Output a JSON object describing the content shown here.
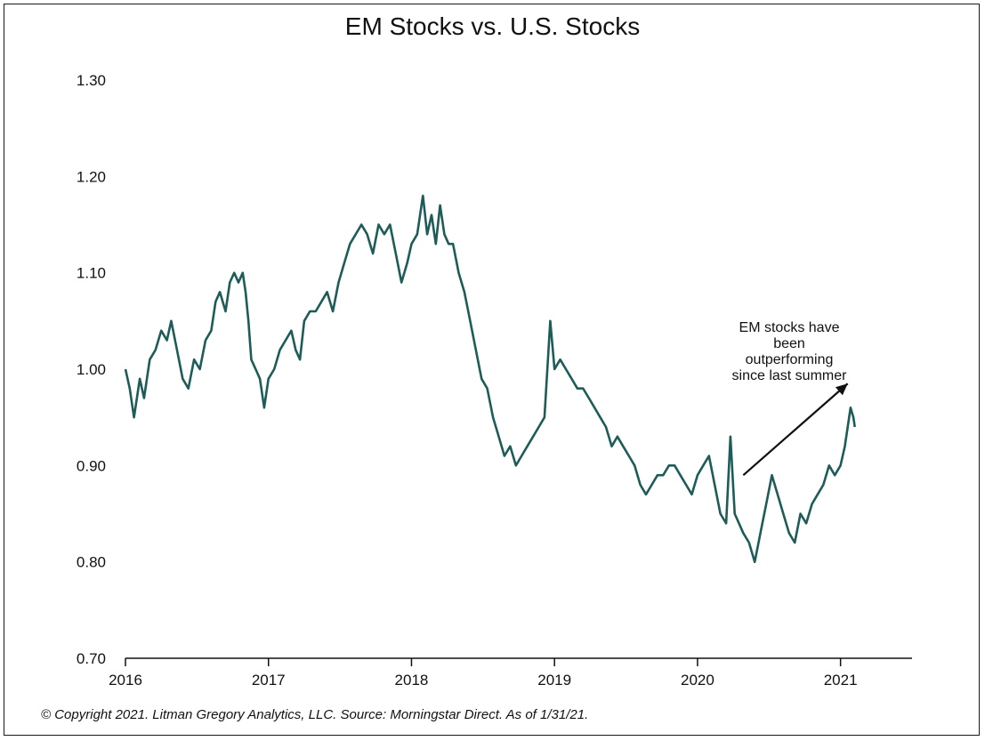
{
  "chart_data": {
    "type": "line",
    "title": "EM Stocks vs. U.S. Stocks",
    "xlabel": "",
    "ylabel": "",
    "xlim": [
      2016.0,
      2021.5
    ],
    "ylim": [
      0.7,
      1.3
    ],
    "y_ticks": [
      "1.30",
      "1.20",
      "1.10",
      "1.00",
      "0.90",
      "0.80",
      "0.70"
    ],
    "x_ticks": [
      "2016",
      "2017",
      "2018",
      "2019",
      "2020",
      "2021"
    ],
    "grid": false,
    "line_color": "#1d5c58",
    "series": [
      {
        "name": "",
        "points": [
          [
            2016.0,
            1.0
          ],
          [
            2016.03,
            0.98
          ],
          [
            2016.06,
            0.95
          ],
          [
            2016.1,
            0.99
          ],
          [
            2016.13,
            0.97
          ],
          [
            2016.17,
            1.01
          ],
          [
            2016.21,
            1.02
          ],
          [
            2016.25,
            1.04
          ],
          [
            2016.29,
            1.03
          ],
          [
            2016.32,
            1.05
          ],
          [
            2016.36,
            1.02
          ],
          [
            2016.4,
            0.99
          ],
          [
            2016.44,
            0.98
          ],
          [
            2016.48,
            1.01
          ],
          [
            2016.52,
            1.0
          ],
          [
            2016.56,
            1.03
          ],
          [
            2016.6,
            1.04
          ],
          [
            2016.63,
            1.07
          ],
          [
            2016.66,
            1.08
          ],
          [
            2016.7,
            1.06
          ],
          [
            2016.73,
            1.09
          ],
          [
            2016.76,
            1.1
          ],
          [
            2016.79,
            1.09
          ],
          [
            2016.82,
            1.1
          ],
          [
            2016.84,
            1.08
          ],
          [
            2016.86,
            1.05
          ],
          [
            2016.88,
            1.01
          ],
          [
            2016.91,
            1.0
          ],
          [
            2016.94,
            0.99
          ],
          [
            2016.97,
            0.96
          ],
          [
            2017.0,
            0.99
          ],
          [
            2017.04,
            1.0
          ],
          [
            2017.08,
            1.02
          ],
          [
            2017.12,
            1.03
          ],
          [
            2017.16,
            1.04
          ],
          [
            2017.19,
            1.02
          ],
          [
            2017.22,
            1.01
          ],
          [
            2017.25,
            1.05
          ],
          [
            2017.29,
            1.06
          ],
          [
            2017.33,
            1.06
          ],
          [
            2017.37,
            1.07
          ],
          [
            2017.41,
            1.08
          ],
          [
            2017.45,
            1.06
          ],
          [
            2017.49,
            1.09
          ],
          [
            2017.53,
            1.11
          ],
          [
            2017.57,
            1.13
          ],
          [
            2017.61,
            1.14
          ],
          [
            2017.65,
            1.15
          ],
          [
            2017.69,
            1.14
          ],
          [
            2017.73,
            1.12
          ],
          [
            2017.77,
            1.15
          ],
          [
            2017.81,
            1.14
          ],
          [
            2017.85,
            1.15
          ],
          [
            2017.89,
            1.12
          ],
          [
            2017.93,
            1.09
          ],
          [
            2017.97,
            1.11
          ],
          [
            2018.0,
            1.13
          ],
          [
            2018.04,
            1.14
          ],
          [
            2018.08,
            1.18
          ],
          [
            2018.11,
            1.14
          ],
          [
            2018.14,
            1.16
          ],
          [
            2018.17,
            1.13
          ],
          [
            2018.2,
            1.17
          ],
          [
            2018.23,
            1.14
          ],
          [
            2018.26,
            1.13
          ],
          [
            2018.29,
            1.13
          ],
          [
            2018.33,
            1.1
          ],
          [
            2018.37,
            1.08
          ],
          [
            2018.41,
            1.05
          ],
          [
            2018.45,
            1.02
          ],
          [
            2018.49,
            0.99
          ],
          [
            2018.53,
            0.98
          ],
          [
            2018.57,
            0.95
          ],
          [
            2018.61,
            0.93
          ],
          [
            2018.65,
            0.91
          ],
          [
            2018.69,
            0.92
          ],
          [
            2018.73,
            0.9
          ],
          [
            2018.77,
            0.91
          ],
          [
            2018.81,
            0.92
          ],
          [
            2018.85,
            0.93
          ],
          [
            2018.89,
            0.94
          ],
          [
            2018.93,
            0.95
          ],
          [
            2018.97,
            1.05
          ],
          [
            2019.0,
            1.0
          ],
          [
            2019.04,
            1.01
          ],
          [
            2019.08,
            1.0
          ],
          [
            2019.12,
            0.99
          ],
          [
            2019.16,
            0.98
          ],
          [
            2019.2,
            0.98
          ],
          [
            2019.24,
            0.97
          ],
          [
            2019.28,
            0.96
          ],
          [
            2019.32,
            0.95
          ],
          [
            2019.36,
            0.94
          ],
          [
            2019.4,
            0.92
          ],
          [
            2019.44,
            0.93
          ],
          [
            2019.48,
            0.92
          ],
          [
            2019.52,
            0.91
          ],
          [
            2019.56,
            0.9
          ],
          [
            2019.6,
            0.88
          ],
          [
            2019.64,
            0.87
          ],
          [
            2019.68,
            0.88
          ],
          [
            2019.72,
            0.89
          ],
          [
            2019.76,
            0.89
          ],
          [
            2019.8,
            0.9
          ],
          [
            2019.84,
            0.9
          ],
          [
            2019.88,
            0.89
          ],
          [
            2019.92,
            0.88
          ],
          [
            2019.96,
            0.87
          ],
          [
            2020.0,
            0.89
          ],
          [
            2020.04,
            0.9
          ],
          [
            2020.08,
            0.91
          ],
          [
            2020.12,
            0.88
          ],
          [
            2020.16,
            0.85
          ],
          [
            2020.2,
            0.84
          ],
          [
            2020.23,
            0.93
          ],
          [
            2020.26,
            0.85
          ],
          [
            2020.29,
            0.84
          ],
          [
            2020.32,
            0.83
          ],
          [
            2020.36,
            0.82
          ],
          [
            2020.4,
            0.8
          ],
          [
            2020.44,
            0.83
          ],
          [
            2020.48,
            0.86
          ],
          [
            2020.52,
            0.89
          ],
          [
            2020.56,
            0.87
          ],
          [
            2020.6,
            0.85
          ],
          [
            2020.64,
            0.83
          ],
          [
            2020.68,
            0.82
          ],
          [
            2020.72,
            0.85
          ],
          [
            2020.76,
            0.84
          ],
          [
            2020.8,
            0.86
          ],
          [
            2020.84,
            0.87
          ],
          [
            2020.88,
            0.88
          ],
          [
            2020.92,
            0.9
          ],
          [
            2020.96,
            0.89
          ],
          [
            2021.0,
            0.9
          ],
          [
            2021.03,
            0.92
          ],
          [
            2021.05,
            0.94
          ],
          [
            2021.07,
            0.96
          ],
          [
            2021.09,
            0.95
          ],
          [
            2021.1,
            0.94
          ]
        ]
      }
    ],
    "annotation": {
      "lines": [
        "EM stocks have",
        "been",
        "outperforming",
        "since last summer"
      ],
      "arrow_from": [
        2020.32,
        0.89
      ],
      "arrow_to": [
        2021.05,
        0.985
      ]
    }
  },
  "footer": {
    "text": "© Copyright 2021. Litman Gregory Analytics, LLC. Source: Morningstar Direct. As of 1/31/21."
  }
}
